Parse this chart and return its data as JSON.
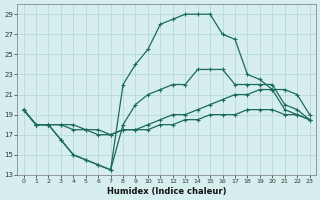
{
  "xlabel": "Humidex (Indice chaleur)",
  "bg_color": "#d6eeed",
  "grid_color": "#b8d8d8",
  "line_color": "#1a6b5a",
  "xlim": [
    -0.5,
    23.5
  ],
  "ylim": [
    13,
    30
  ],
  "xticks": [
    0,
    1,
    2,
    3,
    4,
    5,
    6,
    7,
    8,
    9,
    10,
    11,
    12,
    13,
    14,
    15,
    16,
    17,
    18,
    19,
    20,
    21,
    22,
    23
  ],
  "yticks": [
    13,
    15,
    17,
    19,
    21,
    23,
    25,
    27,
    29
  ],
  "line1_x": [
    0,
    1,
    2,
    3,
    4,
    5,
    6,
    7,
    8,
    9,
    10,
    11,
    12,
    13,
    14,
    15,
    16,
    17,
    18,
    19,
    20,
    21,
    22,
    23
  ],
  "line1_y": [
    19.5,
    18.0,
    18.0,
    16.5,
    15.0,
    14.5,
    14.0,
    13.5,
    22.0,
    24.0,
    25.5,
    28.0,
    28.5,
    29.0,
    29.0,
    29.0,
    27.0,
    26.5,
    23.0,
    22.5,
    21.5,
    19.5,
    19.0,
    18.5
  ],
  "line2_x": [
    0,
    1,
    2,
    3,
    4,
    5,
    6,
    7,
    8,
    9,
    10,
    11,
    12,
    13,
    14,
    15,
    16,
    17,
    18,
    19,
    20,
    21,
    22,
    23
  ],
  "line2_y": [
    19.5,
    18.0,
    18.0,
    16.5,
    15.0,
    14.5,
    14.0,
    13.5,
    18.0,
    20.0,
    21.0,
    21.5,
    22.0,
    22.0,
    23.5,
    23.5,
    23.5,
    22.0,
    22.0,
    22.0,
    22.0,
    20.0,
    19.5,
    18.5
  ],
  "line3_x": [
    0,
    1,
    2,
    3,
    4,
    5,
    6,
    7,
    8,
    9,
    10,
    11,
    12,
    13,
    14,
    15,
    16,
    17,
    18,
    19,
    20,
    21,
    22,
    23
  ],
  "line3_y": [
    19.5,
    18.0,
    18.0,
    18.0,
    18.0,
    17.5,
    17.5,
    17.0,
    17.5,
    17.5,
    18.0,
    18.5,
    19.0,
    19.0,
    19.5,
    20.0,
    20.5,
    21.0,
    21.0,
    21.5,
    21.5,
    21.5,
    21.0,
    19.0
  ],
  "line4_x": [
    0,
    1,
    2,
    3,
    4,
    5,
    6,
    7,
    8,
    9,
    10,
    11,
    12,
    13,
    14,
    15,
    16,
    17,
    18,
    19,
    20,
    21,
    22,
    23
  ],
  "line4_y": [
    19.5,
    18.0,
    18.0,
    18.0,
    17.5,
    17.5,
    17.0,
    17.0,
    17.5,
    17.5,
    17.5,
    18.0,
    18.0,
    18.5,
    18.5,
    19.0,
    19.0,
    19.0,
    19.5,
    19.5,
    19.5,
    19.0,
    19.0,
    18.5
  ]
}
